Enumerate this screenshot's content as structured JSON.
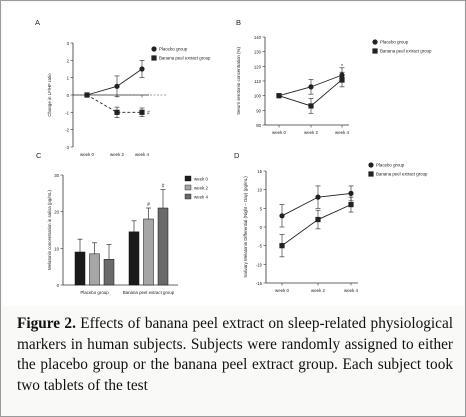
{
  "panels": {
    "A": {
      "letter": "A",
      "ylabel": "Change in LF/HF ratio",
      "yticks": [
        "-3",
        "-2",
        "-1",
        "0",
        "1",
        "2",
        "3"
      ],
      "xticks": [
        "week 0",
        "week 2",
        "week 4"
      ],
      "legend": [
        "Placebo group",
        "Banana peel extract group"
      ],
      "annotation": "#"
    },
    "B": {
      "letter": "B",
      "ylabel": "Serum serotonin concentration (%)",
      "yticks": [
        "80",
        "90",
        "100",
        "110",
        "120",
        "130",
        "140"
      ],
      "xticks": [
        "week 0",
        "week 2",
        "week 4"
      ],
      "legend": [
        "Placebo group",
        "Banana peel extract group"
      ],
      "annotation": "*"
    },
    "C": {
      "letter": "C",
      "ylabel": "Melatonin concentration in saliva (pg/mL)",
      "yticks": [
        "0",
        "10",
        "20",
        "30"
      ],
      "xticks": [
        "Placebo group",
        "Banana peel extract group"
      ],
      "legend": [
        "week 0",
        "week 2",
        "week 4"
      ],
      "annotations": [
        "#",
        "#"
      ]
    },
    "D": {
      "letter": "D",
      "ylabel": "Salivary Melatonin Differential (Night – Day) (pg/mL)",
      "yticks": [
        "-15",
        "-10",
        "-5",
        "0",
        "5",
        "10",
        "15"
      ],
      "xticks": [
        "week 0",
        "week 2",
        "week 4"
      ],
      "legend": [
        "Placebo group",
        "Banana peel extract group"
      ]
    }
  },
  "caption": {
    "label": "Figure 2.",
    "text": " Effects of banana peel extract on sleep-related physiological markers in human subjects. Subjects were randomly assigned to either the placebo group or the banana peel extract group. Each subject took two tablets of the test"
  },
  "colors": {
    "bar_week0": "#1a1a1a",
    "bar_week2": "#a6a6a6",
    "bar_week4": "#6a6a6a",
    "line": "#222222",
    "border": "#9a9a9a"
  },
  "chart_data": [
    {
      "type": "line",
      "x": [
        "week 0",
        "week 2",
        "week 4"
      ],
      "ylabel": "Change in LF/HF ratio",
      "ylim": [
        -3,
        3
      ],
      "series": [
        {
          "name": "Placebo group",
          "values": [
            0,
            0.5,
            1.5
          ],
          "errors": [
            0,
            0.6,
            0.5
          ]
        },
        {
          "name": "Banana peel extract group",
          "values": [
            0,
            -1.0,
            -1.0
          ],
          "errors": [
            0,
            0.3,
            0.25
          ]
        }
      ]
    },
    {
      "type": "line",
      "x": [
        "week 0",
        "week 2",
        "week 4"
      ],
      "ylabel": "Serum serotonin concentration (%)",
      "ylim": [
        80,
        140
      ],
      "series": [
        {
          "name": "Placebo group",
          "values": [
            100,
            106,
            114
          ],
          "errors": [
            0,
            5,
            5
          ]
        },
        {
          "name": "Banana peel extract group",
          "values": [
            100,
            93,
            111
          ],
          "errors": [
            0,
            5,
            5
          ]
        }
      ]
    },
    {
      "type": "bar",
      "categories": [
        "Placebo group",
        "Banana peel extract group"
      ],
      "ylabel": "Melatonin concentration in saliva (pg/mL)",
      "ylim": [
        0,
        30
      ],
      "series": [
        {
          "name": "week 0",
          "values": [
            9,
            14.5
          ],
          "errors": [
            3.5,
            3
          ]
        },
        {
          "name": "week 2",
          "values": [
            8.5,
            18
          ],
          "errors": [
            3,
            3
          ]
        },
        {
          "name": "week 4",
          "values": [
            7,
            21
          ],
          "errors": [
            4,
            5
          ]
        }
      ]
    },
    {
      "type": "line",
      "x": [
        "week 0",
        "week 2",
        "week 4"
      ],
      "ylabel": "Salivary Melatonin Differential (Night – Day) (pg/mL)",
      "ylim": [
        -15,
        15
      ],
      "series": [
        {
          "name": "Placebo group",
          "values": [
            3,
            8,
            9
          ],
          "errors": [
            3,
            3,
            2
          ]
        },
        {
          "name": "Banana peel extract group",
          "values": [
            -5,
            2,
            6
          ],
          "errors": [
            3,
            2.5,
            2
          ]
        }
      ]
    }
  ]
}
